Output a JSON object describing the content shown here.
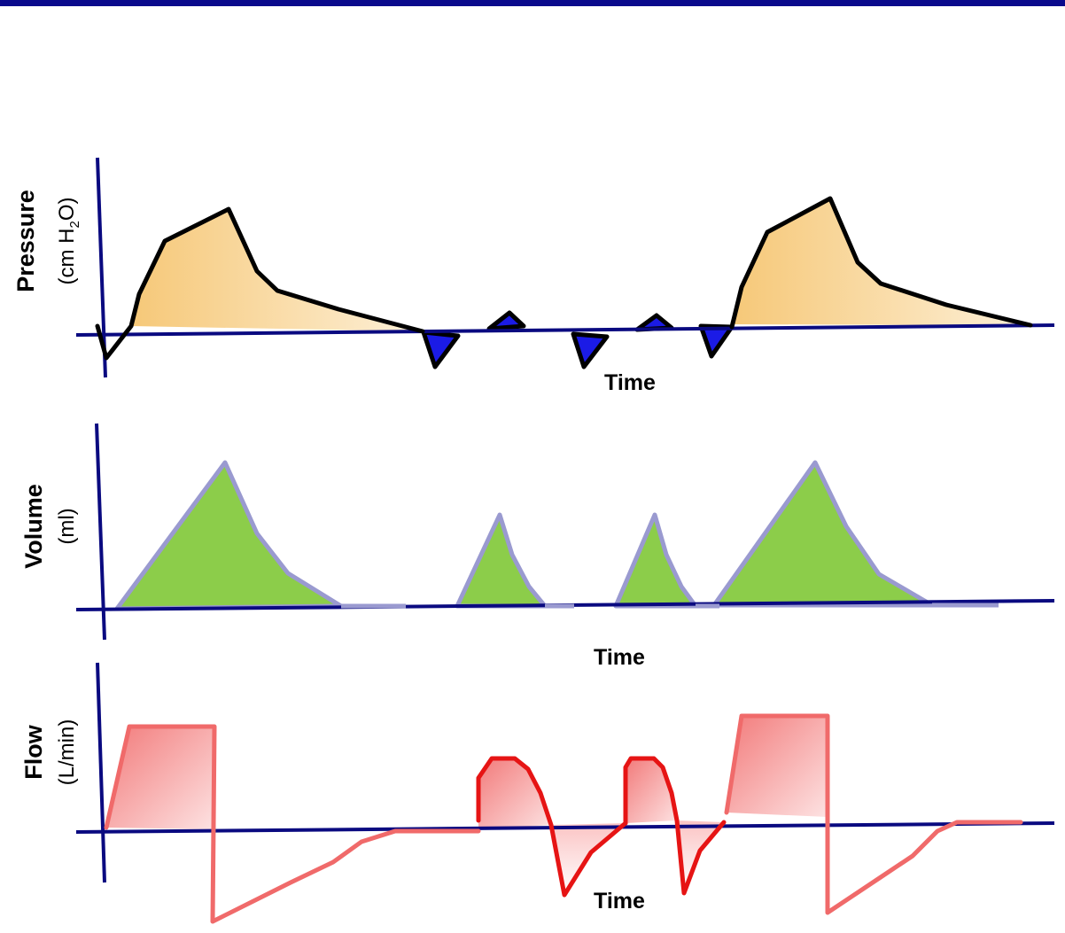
{
  "colors": {
    "top_bar": "#0a0a8c",
    "axis": "#0a0a80",
    "pressure_fill": "#f7d28e",
    "pressure_line": "#000000",
    "pressure_neg_fill": "#1b1be6",
    "volume_fill": "#8ccd4a",
    "volume_line": "#9a9ad0",
    "flow_line_mandatory": "#f06a6a",
    "flow_line_spont": "#e61414",
    "flow_fill": "#f59a9a"
  },
  "panels": {
    "pressure": {
      "label": "Pressure",
      "unit_pre": "(cm H",
      "unit_sub": "2",
      "unit_post": "O)",
      "x_label": "Time"
    },
    "volume": {
      "label": "Volume",
      "unit": "(ml)",
      "x_label": "Time"
    },
    "flow": {
      "label": "Flow",
      "unit": "(L/min)",
      "x_label": "Time"
    }
  }
}
